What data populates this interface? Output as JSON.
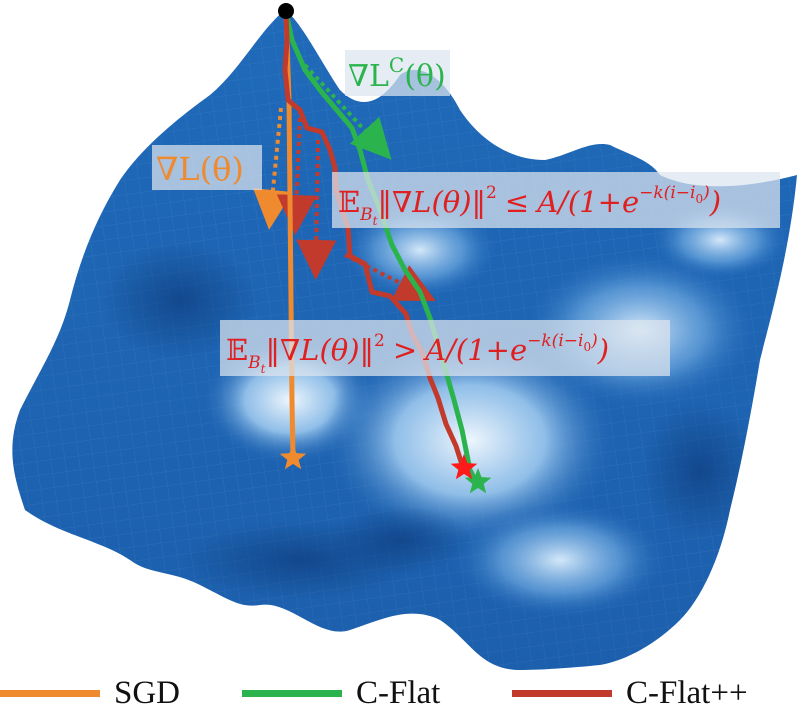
{
  "colors": {
    "sgd": "#ef8a2f",
    "cflat": "#2bb34d",
    "cflatpp": "#c23a2c",
    "surface_dark": "#1a62b4",
    "surface_light": "#d9ecfb",
    "label_box": "#d9e2ee"
  },
  "annotations": {
    "grad_l": "∇L(θ)",
    "grad_lc_base": "∇L",
    "grad_lc_sup": "C",
    "grad_lc_tail": "(θ)",
    "cond_low": {
      "e": "𝔼",
      "sub": "B",
      "subsub": "t",
      "norm": "‖∇L(θ)‖",
      "pow": "2",
      "rel": "≤",
      "rhs1": "A/(1+e",
      "exp": "−k(i−i",
      "exp_sub": "0",
      "exp_close": ")",
      "rhs_close": ")"
    },
    "cond_high": {
      "e": "𝔼",
      "sub": "B",
      "subsub": "t",
      "norm": "‖∇L(θ)‖",
      "pow": "2",
      "rel": ">",
      "rhs1": "A/(1+e",
      "exp": "−k(i−i",
      "exp_sub": "0",
      "exp_close": ")",
      "rhs_close": ")"
    }
  },
  "legend": [
    {
      "label": "SGD",
      "color": "#ef8a2f"
    },
    {
      "label": "C-Flat",
      "color": "#2bb34d"
    },
    {
      "label": "C-Flat++",
      "color": "#c23a2c"
    }
  ]
}
